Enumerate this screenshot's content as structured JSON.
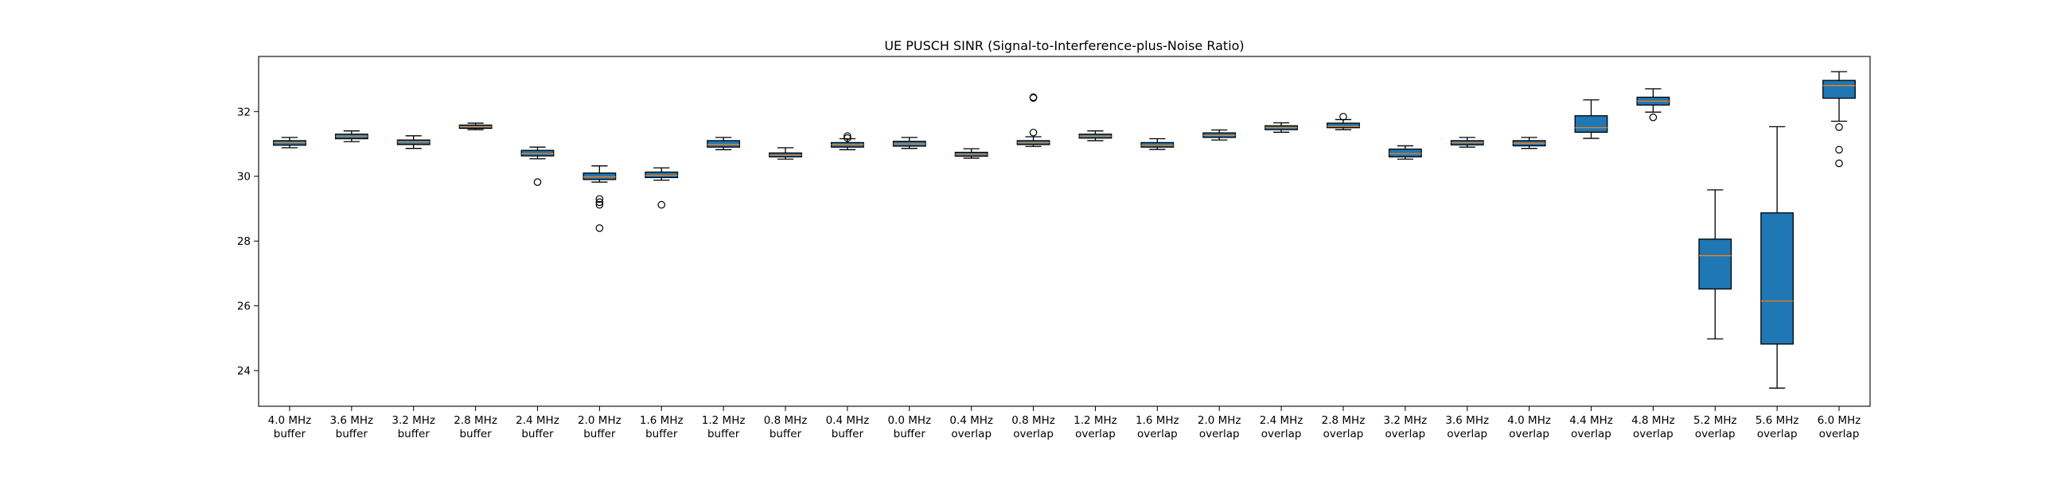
{
  "chart_data": {
    "type": "box",
    "title": "UE PUSCH SINR (Signal-to-Interference-plus-Noise Ratio)",
    "xlabel": "",
    "ylabel": "",
    "ylim": [
      22.9,
      33.7
    ],
    "yticks": [
      24,
      26,
      28,
      30,
      32
    ],
    "grid": false,
    "legend": "none",
    "colors": {
      "box_fill": "#1f77b4",
      "median": "#ff7f0e",
      "outline": "#000000"
    },
    "categories": [
      {
        "line1": "4.0 MHz",
        "line2": "buffer"
      },
      {
        "line1": "3.6 MHz",
        "line2": "buffer"
      },
      {
        "line1": "3.2 MHz",
        "line2": "buffer"
      },
      {
        "line1": "2.8 MHz",
        "line2": "buffer"
      },
      {
        "line1": "2.4 MHz",
        "line2": "buffer"
      },
      {
        "line1": "2.0 MHz",
        "line2": "buffer"
      },
      {
        "line1": "1.6 MHz",
        "line2": "buffer"
      },
      {
        "line1": "1.2 MHz",
        "line2": "buffer"
      },
      {
        "line1": "0.8 MHz",
        "line2": "buffer"
      },
      {
        "line1": "0.4 MHz",
        "line2": "buffer"
      },
      {
        "line1": "0.0 MHz",
        "line2": "buffer"
      },
      {
        "line1": "0.4 MHz",
        "line2": "overlap"
      },
      {
        "line1": "0.8 MHz",
        "line2": "overlap"
      },
      {
        "line1": "1.2 MHz",
        "line2": "overlap"
      },
      {
        "line1": "1.6 MHz",
        "line2": "overlap"
      },
      {
        "line1": "2.0 MHz",
        "line2": "overlap"
      },
      {
        "line1": "2.4 MHz",
        "line2": "overlap"
      },
      {
        "line1": "2.8 MHz",
        "line2": "overlap"
      },
      {
        "line1": "3.2 MHz",
        "line2": "overlap"
      },
      {
        "line1": "3.6 MHz",
        "line2": "overlap"
      },
      {
        "line1": "4.0 MHz",
        "line2": "overlap"
      },
      {
        "line1": "4.4 MHz",
        "line2": "overlap"
      },
      {
        "line1": "4.8 MHz",
        "line2": "overlap"
      },
      {
        "line1": "5.2 MHz",
        "line2": "overlap"
      },
      {
        "line1": "5.6 MHz",
        "line2": "overlap"
      },
      {
        "line1": "6.0 MHz",
        "line2": "overlap"
      }
    ],
    "boxes": [
      {
        "whislo": 30.88,
        "q1": 30.96,
        "med": 31.04,
        "q3": 31.1,
        "whishi": 31.2,
        "fliers": []
      },
      {
        "whislo": 31.07,
        "q1": 31.16,
        "med": 31.24,
        "q3": 31.3,
        "whishi": 31.4,
        "fliers": []
      },
      {
        "whislo": 30.86,
        "q1": 30.98,
        "med": 31.06,
        "q3": 31.12,
        "whishi": 31.25,
        "fliers": []
      },
      {
        "whislo": 31.44,
        "q1": 31.48,
        "med": 31.53,
        "q3": 31.58,
        "whishi": 31.64,
        "fliers": []
      },
      {
        "whislo": 30.54,
        "q1": 30.63,
        "med": 30.7,
        "q3": 30.8,
        "whishi": 30.9,
        "fliers": [
          29.82
        ]
      },
      {
        "whislo": 29.82,
        "q1": 29.9,
        "med": 29.98,
        "q3": 30.1,
        "whishi": 30.32,
        "fliers": [
          29.3,
          29.2,
          29.12,
          28.4
        ]
      },
      {
        "whislo": 29.88,
        "q1": 29.96,
        "med": 30.03,
        "q3": 30.13,
        "whishi": 30.26,
        "fliers": [
          29.12
        ]
      },
      {
        "whislo": 30.82,
        "q1": 30.9,
        "med": 30.98,
        "q3": 31.1,
        "whishi": 31.2,
        "fliers": []
      },
      {
        "whislo": 30.53,
        "q1": 30.6,
        "med": 30.65,
        "q3": 30.72,
        "whishi": 30.88,
        "fliers": []
      },
      {
        "whislo": 30.82,
        "q1": 30.9,
        "med": 30.98,
        "q3": 31.04,
        "whishi": 31.16,
        "fliers": [
          31.18,
          31.24
        ]
      },
      {
        "whislo": 30.86,
        "q1": 30.93,
        "med": 31.0,
        "q3": 31.08,
        "whishi": 31.2,
        "fliers": []
      },
      {
        "whislo": 30.56,
        "q1": 30.62,
        "med": 30.68,
        "q3": 30.74,
        "whishi": 30.85,
        "fliers": []
      },
      {
        "whislo": 30.92,
        "q1": 30.98,
        "med": 31.04,
        "q3": 31.1,
        "whishi": 31.22,
        "fliers": [
          31.35,
          32.42,
          32.44
        ]
      },
      {
        "whislo": 31.1,
        "q1": 31.18,
        "med": 31.24,
        "q3": 31.3,
        "whishi": 31.4,
        "fliers": []
      },
      {
        "whislo": 30.83,
        "q1": 30.9,
        "med": 30.96,
        "q3": 31.04,
        "whishi": 31.16,
        "fliers": []
      },
      {
        "whislo": 31.12,
        "q1": 31.2,
        "med": 31.26,
        "q3": 31.34,
        "whishi": 31.43,
        "fliers": []
      },
      {
        "whislo": 31.36,
        "q1": 31.44,
        "med": 31.5,
        "q3": 31.56,
        "whishi": 31.65,
        "fliers": []
      },
      {
        "whislo": 31.44,
        "q1": 31.5,
        "med": 31.54,
        "q3": 31.64,
        "whishi": 31.75,
        "fliers": [
          31.84
        ]
      },
      {
        "whislo": 30.53,
        "q1": 30.6,
        "med": 30.7,
        "q3": 30.84,
        "whishi": 30.94,
        "fliers": []
      },
      {
        "whislo": 30.9,
        "q1": 30.97,
        "med": 31.04,
        "q3": 31.1,
        "whishi": 31.2,
        "fliers": []
      },
      {
        "whislo": 30.86,
        "q1": 30.94,
        "med": 31.02,
        "q3": 31.1,
        "whishi": 31.2,
        "fliers": []
      },
      {
        "whislo": 31.17,
        "q1": 31.36,
        "med": 31.5,
        "q3": 31.87,
        "whishi": 32.36,
        "fliers": []
      },
      {
        "whislo": 31.98,
        "q1": 32.2,
        "med": 32.32,
        "q3": 32.44,
        "whishi": 32.7,
        "fliers": [
          31.82
        ]
      },
      {
        "whislo": 24.98,
        "q1": 26.52,
        "med": 27.55,
        "q3": 28.06,
        "whishi": 29.58,
        "fliers": []
      },
      {
        "whislo": 23.46,
        "q1": 24.82,
        "med": 26.15,
        "q3": 28.87,
        "whishi": 31.53,
        "fliers": []
      },
      {
        "whislo": 31.7,
        "q1": 32.41,
        "med": 32.8,
        "q3": 32.96,
        "whishi": 33.23,
        "fliers": [
          31.52,
          30.82,
          30.4
        ]
      }
    ]
  }
}
